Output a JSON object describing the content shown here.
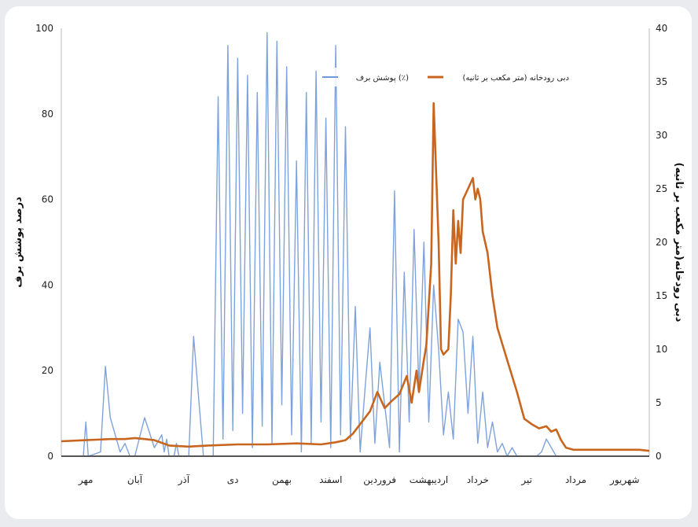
{
  "chart_data": {
    "type": "line",
    "categories": [
      "مهر",
      "آبان",
      "آذر",
      "دی",
      "بهمن",
      "اسفند",
      "فروردین",
      "اردیبهشت",
      "خرداد",
      "تیر",
      "مرداد",
      "شهریور"
    ],
    "left_axis": {
      "label": "درصد پوشش برف",
      "ticks": [
        "0",
        "20",
        "40",
        "60",
        "80",
        "100"
      ],
      "range": [
        0,
        100
      ]
    },
    "right_axis": {
      "label": "دبی رودخانه(متر مکعب بر ثانیه)",
      "ticks": [
        "0",
        "5",
        "10",
        "15",
        "20",
        "25",
        "30",
        "35",
        "40"
      ],
      "range": [
        0,
        40
      ]
    },
    "legend": "top-center",
    "series": [
      {
        "name": "پوشش برف (٪)",
        "axis": "left",
        "color": "#6f98d8",
        "x": [
          0,
          0.2,
          0.45,
          0.5,
          0.55,
          0.8,
          0.9,
          1,
          1.15,
          1.2,
          1.3,
          1.4,
          1.5,
          1.7,
          1.9,
          2.05,
          2.1,
          2.15,
          2.2,
          2.3,
          2.35,
          2.4,
          2.5,
          2.6,
          2.7,
          2.9,
          3.1,
          3.2,
          3.3,
          3.4,
          3.5,
          3.6,
          3.7,
          3.8,
          3.9,
          4,
          4.1,
          4.2,
          4.3,
          4.4,
          4.5,
          4.6,
          4.7,
          4.8,
          4.9,
          5,
          5.1,
          5.2,
          5.3,
          5.4,
          5.5,
          5.6,
          5.7,
          5.8,
          5.9,
          6,
          6.1,
          6.2,
          6.3,
          6.4,
          6.5,
          6.6,
          6.7,
          6.8,
          6.9,
          7,
          7.1,
          7.2,
          7.3,
          7.4,
          7.5,
          7.6,
          7.7,
          7.8,
          7.9,
          8,
          8.1,
          8.2,
          8.3,
          8.4,
          8.5,
          8.6,
          8.7,
          8.8,
          8.9,
          9,
          9.1,
          9.2,
          9.3,
          9.6,
          9.7,
          9.8,
          9.9,
          10.1,
          10.5,
          11,
          11.5,
          12
        ],
        "y": [
          0,
          0,
          0,
          8,
          0,
          1,
          21,
          9,
          3,
          1,
          3,
          0,
          0,
          9,
          2,
          5,
          1,
          4,
          0,
          0,
          3,
          0,
          0,
          0,
          28,
          0,
          0,
          84,
          4,
          96,
          6,
          93,
          10,
          89,
          2,
          85,
          7,
          99,
          3,
          97,
          12,
          91,
          5,
          69,
          1,
          85,
          3,
          90,
          8,
          79,
          2,
          96,
          5,
          77,
          4,
          35,
          1,
          16,
          30,
          3,
          22,
          12,
          2,
          62,
          1,
          43,
          8,
          53,
          15,
          50,
          8,
          40,
          25,
          5,
          15,
          4,
          32,
          29,
          10,
          28,
          3,
          15,
          2,
          8,
          1,
          3,
          0,
          2,
          0,
          0,
          0,
          1,
          4,
          0,
          0,
          0,
          0,
          0
        ]
      },
      {
        "name": "دبی رودخانه (متر مکعب بر ثانیه)",
        "axis": "right",
        "color": "#c8651f",
        "x": [
          0,
          0.5,
          1,
          1.3,
          1.5,
          1.7,
          1.9,
          2.2,
          2.6,
          3,
          3.6,
          4.2,
          4.8,
          5.3,
          5.6,
          5.8,
          5.95,
          6.1,
          6.3,
          6.45,
          6.6,
          6.75,
          6.9,
          7.05,
          7.15,
          7.25,
          7.3,
          7.35,
          7.4,
          7.45,
          7.55,
          7.6,
          7.7,
          7.75,
          7.8,
          7.9,
          7.95,
          8,
          8.05,
          8.1,
          8.15,
          8.2,
          8.3,
          8.4,
          8.45,
          8.5,
          8.55,
          8.6,
          8.7,
          8.8,
          8.9,
          9.1,
          9.3,
          9.45,
          9.6,
          9.75,
          9.9,
          10,
          10.1,
          10.2,
          10.3,
          10.45,
          10.6,
          10.9,
          11.2,
          11.5,
          11.8,
          12
        ],
        "y": [
          1.4,
          1.5,
          1.6,
          1.6,
          1.7,
          1.6,
          1.5,
          1,
          0.9,
          1,
          1.1,
          1.1,
          1.2,
          1.1,
          1.3,
          1.5,
          2.1,
          3,
          4.2,
          6,
          4.5,
          5.2,
          5.8,
          7.5,
          5,
          8,
          6,
          7.5,
          9,
          10.4,
          18,
          33,
          20,
          10,
          9.5,
          10,
          15,
          23,
          18,
          22,
          19,
          24,
          25,
          26,
          24,
          25,
          24,
          21,
          19,
          15,
          12,
          9,
          6,
          3.5,
          3,
          2.6,
          2.8,
          2.3,
          2.5,
          1.5,
          0.8,
          0.6,
          0.6,
          0.6,
          0.6,
          0.6,
          0.6,
          0.5
        ]
      },
      {
        "name": "",
        "axis": "left",
        "color": "#555555",
        "x": [
          0,
          12
        ],
        "y": [
          0,
          0
        ]
      }
    ]
  }
}
